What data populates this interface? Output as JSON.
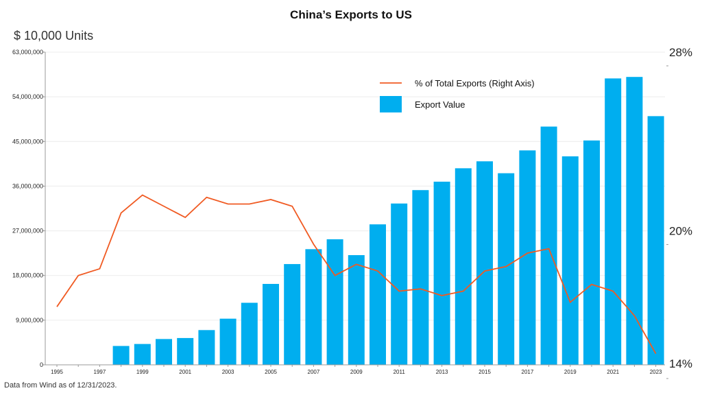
{
  "title": "China’s Exports to US",
  "unit_label": "$ 10,000 Units",
  "source_note": "Data from Wind as of 12/31/2023.",
  "colors": {
    "bar": "#00AEEF",
    "line": "#F05A22",
    "axis": "#999999",
    "grid": "#ececec"
  },
  "chart_data": {
    "type": "bar",
    "title": "China’s Exports to US",
    "ylabel": "$ 10,000 Units",
    "x": [
      1995,
      1996,
      1997,
      1998,
      1999,
      2000,
      2001,
      2002,
      2003,
      2004,
      2005,
      2006,
      2007,
      2008,
      2009,
      2010,
      2011,
      2012,
      2013,
      2014,
      2015,
      2016,
      2017,
      2018,
      2019,
      2020,
      2021,
      2022,
      2023
    ],
    "x_tick_labels": [
      "1995",
      "1997",
      "1999",
      "2001",
      "2003",
      "2005",
      "2007",
      "2009",
      "2011",
      "2013",
      "2015",
      "2017",
      "2019",
      "2021",
      "2023"
    ],
    "ylim": [
      0,
      63000000
    ],
    "y_tick_labels": [
      "0",
      "9,000,000",
      "18,000,000",
      "27,000,000",
      "36,000,000",
      "45,000,000",
      "54,000,000",
      "63,000,000"
    ],
    "y2lim": [
      14,
      28
    ],
    "y2_tick_labels": [
      "14%",
      "20%",
      "28%"
    ],
    "legend_position": "top-right",
    "series": [
      {
        "name": "% of Total Exports (Right Axis)",
        "type": "line",
        "axis": "right",
        "values": [
          16.6,
          18.0,
          18.3,
          20.8,
          21.6,
          21.1,
          20.6,
          21.5,
          21.2,
          21.2,
          21.4,
          21.1,
          19.4,
          18.0,
          18.5,
          18.2,
          17.3,
          17.4,
          17.1,
          17.3,
          18.2,
          18.4,
          19.0,
          19.2,
          16.8,
          17.6,
          17.3,
          16.2,
          14.5
        ]
      },
      {
        "name": "Export Value",
        "type": "bar",
        "axis": "left",
        "values": [
          null,
          null,
          null,
          3800000,
          4200000,
          5200000,
          5400000,
          7000000,
          9300000,
          12500000,
          16300000,
          20300000,
          23300000,
          25300000,
          22100000,
          28300000,
          32500000,
          35200000,
          36900000,
          39600000,
          41000000,
          38600000,
          43200000,
          48000000,
          42000000,
          45200000,
          57700000,
          58000000,
          50100000
        ]
      }
    ]
  }
}
